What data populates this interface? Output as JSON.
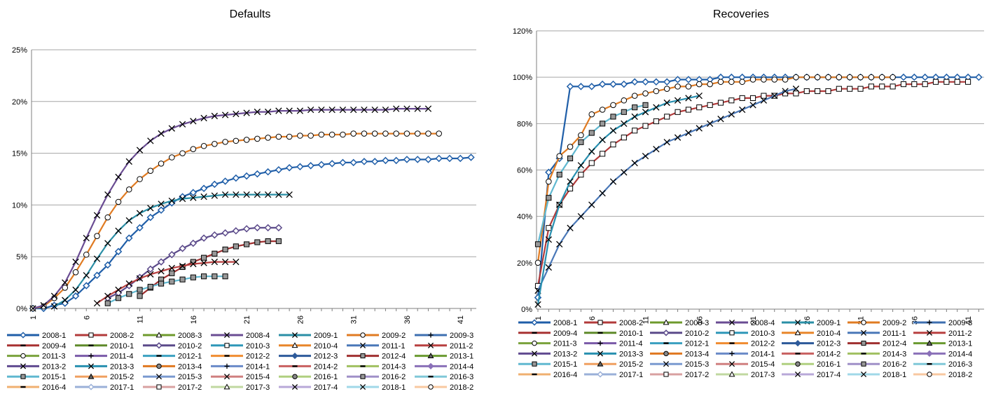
{
  "chart_data": [
    {
      "type": "line",
      "title": "Defaults",
      "xlabel": "",
      "ylabel": "",
      "ylim": [
        0,
        0.25
      ],
      "y_ticks": [
        "0%",
        "5%",
        "10%",
        "15%",
        "20%",
        "25%"
      ],
      "x_ticks": [
        "1",
        "6",
        "11",
        "16",
        "21",
        "26",
        "31",
        "36",
        "41"
      ],
      "grid": "horizontal",
      "legend_placement": "bottom",
      "series": [
        {
          "name": "2008-1",
          "values": [
            0.0,
            0.0,
            0.003,
            0.005,
            0.012,
            0.022,
            0.032,
            0.042,
            0.055,
            0.068,
            0.078,
            0.088,
            0.095,
            0.102,
            0.108,
            0.112,
            0.116,
            0.12,
            0.123,
            0.126,
            0.128,
            0.13,
            0.132,
            0.134,
            0.136,
            0.137,
            0.138,
            0.139,
            0.14,
            0.141,
            0.141,
            0.142,
            0.142,
            0.143,
            0.143,
            0.144,
            0.144,
            0.144,
            0.145,
            0.145,
            0.145,
            0.146
          ]
        },
        {
          "name": "2010-2",
          "values": [
            null,
            null,
            null,
            null,
            null,
            null,
            null,
            0.01,
            0.015,
            0.022,
            0.03,
            0.038,
            0.045,
            0.052,
            0.058,
            0.063,
            0.068,
            0.071,
            0.073,
            0.075,
            0.077,
            0.078,
            0.078,
            0.078
          ]
        },
        {
          "name": "2012-4",
          "values": [
            null,
            null,
            null,
            null,
            null,
            null,
            null,
            null,
            null,
            null,
            0.012,
            0.02,
            0.028,
            0.034,
            0.04,
            0.045,
            0.049,
            0.053,
            0.057,
            0.06,
            0.062,
            0.064,
            0.065,
            0.065
          ]
        },
        {
          "name": "2009-2",
          "values": [
            0.0,
            0.002,
            0.01,
            0.02,
            0.035,
            0.052,
            0.07,
            0.088,
            0.103,
            0.115,
            0.125,
            0.133,
            0.14,
            0.146,
            0.15,
            0.154,
            0.157,
            0.159,
            0.161,
            0.162,
            0.163,
            0.164,
            0.165,
            0.166,
            0.166,
            0.167,
            0.167,
            0.168,
            0.168,
            0.168,
            0.169,
            0.169,
            0.169,
            0.169,
            0.169,
            0.169,
            0.169,
            0.169,
            0.169
          ]
        },
        {
          "name": "2008-4",
          "values": [
            0.0,
            0.003,
            0.012,
            0.025,
            0.045,
            0.068,
            0.09,
            0.11,
            0.127,
            0.142,
            0.153,
            0.162,
            0.169,
            0.174,
            0.178,
            0.181,
            0.184,
            0.186,
            0.187,
            0.188,
            0.189,
            0.19,
            0.19,
            0.191,
            0.191,
            0.191,
            0.192,
            0.192,
            0.192,
            0.192,
            0.192,
            0.192,
            0.192,
            0.192,
            0.193,
            0.193,
            0.193,
            0.193
          ]
        },
        {
          "name": "2009-1",
          "values": [
            null,
            null,
            0.002,
            0.008,
            0.018,
            0.032,
            0.048,
            0.063,
            0.075,
            0.085,
            0.092,
            0.097,
            0.101,
            0.104,
            0.106,
            0.107,
            0.108,
            0.109,
            0.11,
            0.11,
            0.11,
            0.11,
            0.11,
            0.11,
            0.11
          ]
        },
        {
          "name": "2011-2",
          "values": [
            null,
            null,
            null,
            null,
            null,
            null,
            0.005,
            0.012,
            0.018,
            0.024,
            0.029,
            0.033,
            0.036,
            0.039,
            0.041,
            0.043,
            0.044,
            0.045,
            0.045,
            0.045
          ]
        },
        {
          "name": "2015-1",
          "values": [
            null,
            null,
            null,
            null,
            null,
            null,
            null,
            0.005,
            0.01,
            0.014,
            0.018,
            0.021,
            0.024,
            0.026,
            0.028,
            0.03,
            0.031,
            0.031,
            0.031
          ]
        }
      ]
    },
    {
      "type": "line",
      "title": "Recoveries",
      "xlabel": "",
      "ylabel": "",
      "ylim": [
        0,
        1.2
      ],
      "y_ticks": [
        "0%",
        "20%",
        "40%",
        "60%",
        "80%",
        "100%",
        "120%"
      ],
      "x_ticks": [
        "1",
        "6",
        "11",
        "16",
        "21",
        "26",
        "31",
        "36",
        "41"
      ],
      "grid": "horizontal",
      "legend_placement": "bottom",
      "series": [
        {
          "name": "2008-1",
          "values": [
            0.05,
            0.59,
            0.65,
            0.96,
            0.96,
            0.96,
            0.97,
            0.97,
            0.97,
            0.98,
            0.98,
            0.98,
            0.98,
            0.99,
            0.99,
            0.99,
            0.99,
            1.0,
            1.0,
            1.0,
            1.0,
            1.0,
            1.0,
            1.0,
            1.0,
            1.0,
            1.0,
            1.0,
            1.0,
            1.0,
            1.0,
            1.0,
            1.0,
            1.0,
            1.0,
            1.0,
            1.0,
            1.0,
            1.0,
            1.0,
            1.0,
            1.0
          ]
        },
        {
          "name": "2008-2",
          "values": [
            0.1,
            0.35,
            0.45,
            0.52,
            0.58,
            0.63,
            0.67,
            0.71,
            0.74,
            0.77,
            0.79,
            0.81,
            0.83,
            0.85,
            0.86,
            0.87,
            0.88,
            0.89,
            0.9,
            0.91,
            0.91,
            0.92,
            0.92,
            0.93,
            0.93,
            0.94,
            0.94,
            0.94,
            0.95,
            0.95,
            0.95,
            0.96,
            0.96,
            0.96,
            0.97,
            0.97,
            0.97,
            0.98,
            0.98,
            0.98,
            0.98
          ]
        },
        {
          "name": "2009-2",
          "values": [
            0.2,
            0.55,
            0.66,
            0.7,
            0.75,
            0.84,
            0.86,
            0.88,
            0.9,
            0.92,
            0.93,
            0.94,
            0.95,
            0.96,
            0.96,
            0.97,
            0.97,
            0.98,
            0.98,
            0.98,
            0.99,
            0.99,
            0.99,
            0.99,
            1.0,
            1.0,
            1.0,
            1.0,
            1.0,
            1.0,
            1.0,
            1.0,
            1.0,
            1.0
          ]
        },
        {
          "name": "2011-1",
          "values": [
            0.08,
            0.18,
            0.28,
            0.35,
            0.4,
            0.45,
            0.5,
            0.55,
            0.59,
            0.63,
            0.66,
            0.69,
            0.72,
            0.74,
            0.76,
            0.78,
            0.8,
            0.82,
            0.84,
            0.86,
            0.88,
            0.9,
            0.92,
            0.94,
            0.95
          ]
        },
        {
          "name": "2013-3",
          "values": [
            0.02,
            0.3,
            0.45,
            0.55,
            0.62,
            0.68,
            0.73,
            0.77,
            0.8,
            0.83,
            0.85,
            0.87,
            0.89,
            0.9,
            0.91,
            0.92
          ]
        },
        {
          "name": "2015-1",
          "values": [
            0.28,
            0.48,
            0.58,
            0.65,
            0.72,
            0.76,
            0.8,
            0.83,
            0.85,
            0.87,
            0.88
          ]
        }
      ]
    }
  ],
  "legend": {
    "items": [
      {
        "label": "2008-1",
        "color": "#1f5ea8",
        "marker": "diamond-open"
      },
      {
        "label": "2008-2",
        "color": "#b23a3a",
        "marker": "square-open"
      },
      {
        "label": "2008-3",
        "color": "#6e9a2c",
        "marker": "triangle-open"
      },
      {
        "label": "2008-4",
        "color": "#6a4c93",
        "marker": "x"
      },
      {
        "label": "2009-1",
        "color": "#2a8fa6",
        "marker": "x"
      },
      {
        "label": "2009-2",
        "color": "#e07b22",
        "marker": "circle-open"
      },
      {
        "label": "2009-3",
        "color": "#3d6fb0",
        "marker": "plus"
      },
      {
        "label": "2009-4",
        "color": "#a83232",
        "marker": "dash"
      },
      {
        "label": "2010-1",
        "color": "#5f8a2a",
        "marker": "dash"
      },
      {
        "label": "2010-2",
        "color": "#5b4a8a",
        "marker": "diamond-open"
      },
      {
        "label": "2010-3",
        "color": "#2e97b8",
        "marker": "square-open"
      },
      {
        "label": "2010-4",
        "color": "#e8862a",
        "marker": "triangle-open"
      },
      {
        "label": "2011-1",
        "color": "#4a78b8",
        "marker": "x"
      },
      {
        "label": "2011-2",
        "color": "#b84040",
        "marker": "x"
      },
      {
        "label": "2011-3",
        "color": "#7aa23c",
        "marker": "circle-open"
      },
      {
        "label": "2011-4",
        "color": "#7a5aa8",
        "marker": "plus"
      },
      {
        "label": "2012-1",
        "color": "#3aa0c0",
        "marker": "dash"
      },
      {
        "label": "2012-2",
        "color": "#f08c30",
        "marker": "dash"
      },
      {
        "label": "2012-3",
        "color": "#2d5a9a",
        "marker": "diamond"
      },
      {
        "label": "2012-4",
        "color": "#a03030",
        "marker": "square"
      },
      {
        "label": "2013-1",
        "color": "#6a9a30",
        "marker": "triangle"
      },
      {
        "label": "2013-2",
        "color": "#604a90",
        "marker": "x"
      },
      {
        "label": "2013-3",
        "color": "#2890b0",
        "marker": "x"
      },
      {
        "label": "2013-4",
        "color": "#e07820",
        "marker": "circle"
      },
      {
        "label": "2014-1",
        "color": "#6a8ac8",
        "marker": "plus"
      },
      {
        "label": "2014-2",
        "color": "#c86060",
        "marker": "dash"
      },
      {
        "label": "2014-3",
        "color": "#a0c060",
        "marker": "dash"
      },
      {
        "label": "2014-4",
        "color": "#8a70b8",
        "marker": "diamond"
      },
      {
        "label": "2015-1",
        "color": "#60b8d0",
        "marker": "square"
      },
      {
        "label": "2015-2",
        "color": "#f0a060",
        "marker": "triangle"
      },
      {
        "label": "2015-3",
        "color": "#7a9ad0",
        "marker": "x"
      },
      {
        "label": "2015-4",
        "color": "#d08080",
        "marker": "x"
      },
      {
        "label": "2016-1",
        "color": "#b0d080",
        "marker": "circle"
      },
      {
        "label": "2016-2",
        "color": "#a090c8",
        "marker": "square"
      },
      {
        "label": "2016-3",
        "color": "#80c8d8",
        "marker": "dash"
      },
      {
        "label": "2016-4",
        "color": "#f0b070",
        "marker": "dash"
      },
      {
        "label": "2017-1",
        "color": "#9ab0d8",
        "marker": "diamond-open"
      },
      {
        "label": "2017-2",
        "color": "#d8a0a0",
        "marker": "square-open"
      },
      {
        "label": "2017-3",
        "color": "#c0d8a0",
        "marker": "triangle-open"
      },
      {
        "label": "2017-4",
        "color": "#b8a8d8",
        "marker": "x"
      },
      {
        "label": "2018-1",
        "color": "#a0d8e8",
        "marker": "x"
      },
      {
        "label": "2018-2",
        "color": "#f8c8a0",
        "marker": "circle-open"
      }
    ]
  },
  "colors": {
    "grid": "#a6a6a6",
    "axis": "#7f7f7f"
  }
}
